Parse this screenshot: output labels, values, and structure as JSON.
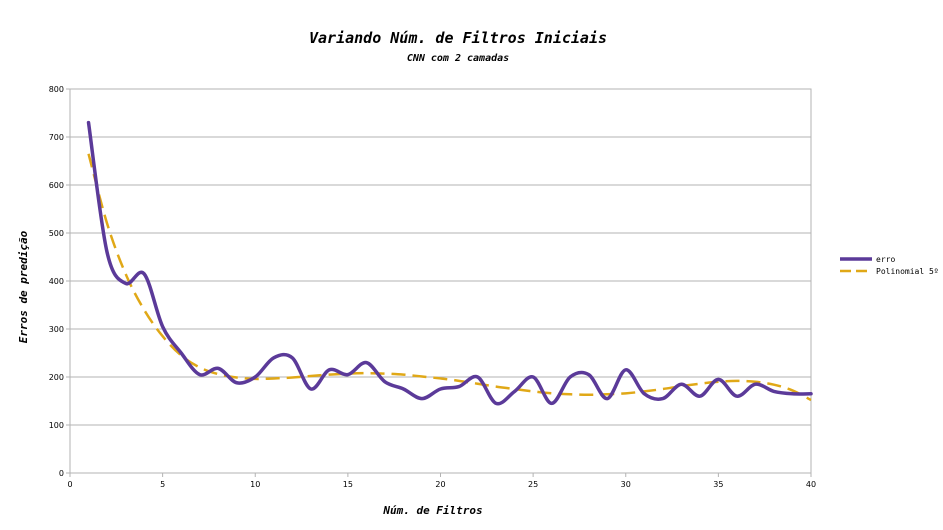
{
  "chart_data": {
    "type": "line",
    "title": "Variando Núm. de Filtros Iniciais",
    "subtitle": "CNN com 2 camadas",
    "xlabel": "Núm. de Filtros",
    "ylabel": "Erros de predição",
    "xlim": [
      0,
      40
    ],
    "ylim": [
      0,
      800
    ],
    "xticks": [
      0,
      5,
      10,
      15,
      20,
      25,
      30,
      35,
      40
    ],
    "yticks": [
      0,
      100,
      200,
      300,
      400,
      500,
      600,
      700,
      800
    ],
    "x_tick_labels": [
      "0",
      "5",
      "10",
      "15",
      "20",
      "25",
      "30",
      "35",
      "40"
    ],
    "y_tick_labels": [
      "0",
      "100",
      "200",
      "300",
      "400",
      "500",
      "600",
      "700",
      "800"
    ],
    "grid": "horizontal",
    "legend_position": "right",
    "series": [
      {
        "name": "erro",
        "color": "#5b3a99",
        "style": "solid",
        "x": [
          1,
          2,
          3,
          4,
          5,
          6,
          7,
          8,
          9,
          10,
          11,
          12,
          13,
          14,
          15,
          16,
          17,
          18,
          19,
          20,
          21,
          22,
          23,
          24,
          25,
          26,
          27,
          28,
          29,
          30,
          31,
          32,
          33,
          34,
          35,
          36,
          37,
          38,
          39,
          40
        ],
        "values": [
          730,
          460,
          395,
          415,
          305,
          250,
          205,
          218,
          188,
          200,
          240,
          240,
          175,
          215,
          205,
          230,
          190,
          175,
          155,
          175,
          180,
          200,
          145,
          170,
          200,
          145,
          200,
          205,
          155,
          215,
          165,
          155,
          185,
          160,
          195,
          160,
          185,
          170,
          165,
          165
        ]
      },
      {
        "name": "Polinomial 5º",
        "color": "#e0a817",
        "style": "dashed",
        "x": [
          1,
          2,
          3,
          4,
          5,
          6,
          7,
          8,
          9,
          10,
          11,
          12,
          13,
          14,
          15,
          16,
          17,
          18,
          19,
          20,
          21,
          22,
          23,
          24,
          25,
          26,
          27,
          28,
          29,
          30,
          31,
          32,
          33,
          34,
          35,
          36,
          37,
          38,
          39,
          40
        ],
        "values": [
          665,
          520,
          415,
          340,
          285,
          245,
          220,
          206,
          199,
          196,
          197,
          199,
          202,
          205,
          207,
          208,
          207,
          205,
          201,
          197,
          192,
          186,
          180,
          175,
          170,
          166,
          164,
          163,
          164,
          166,
          170,
          175,
          181,
          186,
          190,
          192,
          190,
          184,
          172,
          152
        ]
      }
    ]
  }
}
